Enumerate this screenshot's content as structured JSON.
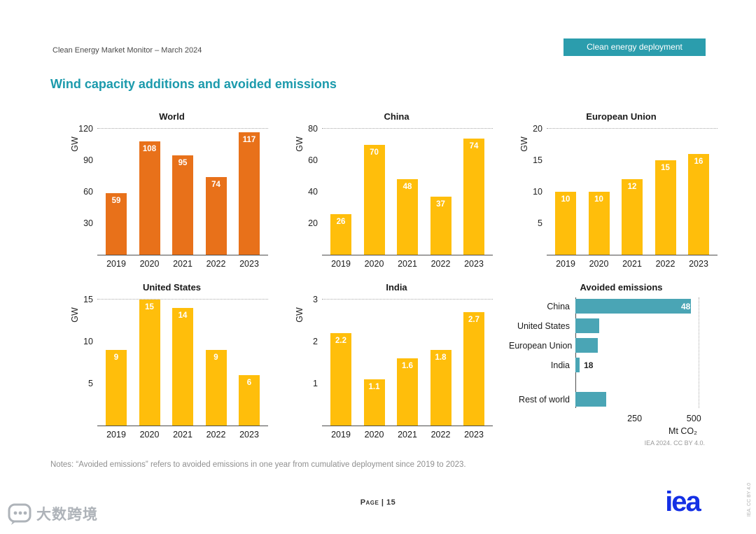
{
  "header": {
    "doc_title": "Clean Energy Market Monitor – March 2024",
    "badge_label": "Clean energy deployment"
  },
  "page_title": "Wind capacity additions and avoided emissions",
  "notes": "Notes: “Avoided emissions” refers to avoided emissions in one year from cumulative deployment since 2019 to 2023.",
  "footer": {
    "page_label": "Page | 15",
    "logo_text": "iea",
    "side_credit": "IEA. CC BY 4.0"
  },
  "watermark": {
    "text": "大数跨境"
  },
  "colors": {
    "title_teal": "#1B9AAC",
    "badge_bg": "#2B9DAD",
    "bar_orange": "#E8711A",
    "bar_yellow": "#FFBE0B",
    "bar_teal": "#4AA5B5",
    "iea_blue": "#1430E5"
  },
  "chart_data": [
    {
      "type": "bar",
      "title": "World",
      "ylabel": "GW",
      "categories": [
        "2019",
        "2020",
        "2021",
        "2022",
        "2023"
      ],
      "values": [
        59,
        108,
        95,
        74,
        117
      ],
      "yticks": [
        30,
        60,
        90,
        120
      ],
      "ymax": 120,
      "color": "#E8711A",
      "grid": "dotted line at y-max only",
      "value_labels": "inside top, white"
    },
    {
      "type": "bar",
      "title": "China",
      "ylabel": "GW",
      "categories": [
        "2019",
        "2020",
        "2021",
        "2022",
        "2023"
      ],
      "values": [
        26,
        70,
        48,
        37,
        74
      ],
      "yticks": [
        20,
        40,
        60,
        80
      ],
      "ymax": 80,
      "color": "#FFBE0B"
    },
    {
      "type": "bar",
      "title": "European Union",
      "ylabel": "GW",
      "categories": [
        "2019",
        "2020",
        "2021",
        "2022",
        "2023"
      ],
      "values": [
        10,
        10,
        12,
        15,
        16
      ],
      "yticks": [
        5,
        10,
        15,
        20
      ],
      "ymax": 20,
      "color": "#FFBE0B"
    },
    {
      "type": "bar",
      "title": "United States",
      "ylabel": "GW",
      "categories": [
        "2019",
        "2020",
        "2021",
        "2022",
        "2023"
      ],
      "values": [
        9,
        15,
        14,
        9,
        6
      ],
      "yticks": [
        5,
        10,
        15
      ],
      "ymax": 15,
      "color": "#FFBE0B"
    },
    {
      "type": "bar",
      "title": "India",
      "ylabel": "GW",
      "categories": [
        "2019",
        "2020",
        "2021",
        "2022",
        "2023"
      ],
      "values": [
        2.2,
        1.1,
        1.6,
        1.8,
        2.7
      ],
      "yticks": [
        1,
        2,
        3
      ],
      "ymax": 3,
      "color": "#FFBE0B"
    },
    {
      "type": "bar-horizontal",
      "title": "Avoided emissions",
      "categories": [
        "China",
        "United States",
        "European Union",
        "India",
        "Rest of world"
      ],
      "values": [
        487,
        99,
        95,
        18,
        131
      ],
      "xticks": [
        250,
        500
      ],
      "xmax": 520,
      "xlabel": "Mt CO₂",
      "color": "#4AA5B5",
      "gap_before_last": true,
      "credit": "IEA 2024. CC BY 4.0."
    }
  ]
}
